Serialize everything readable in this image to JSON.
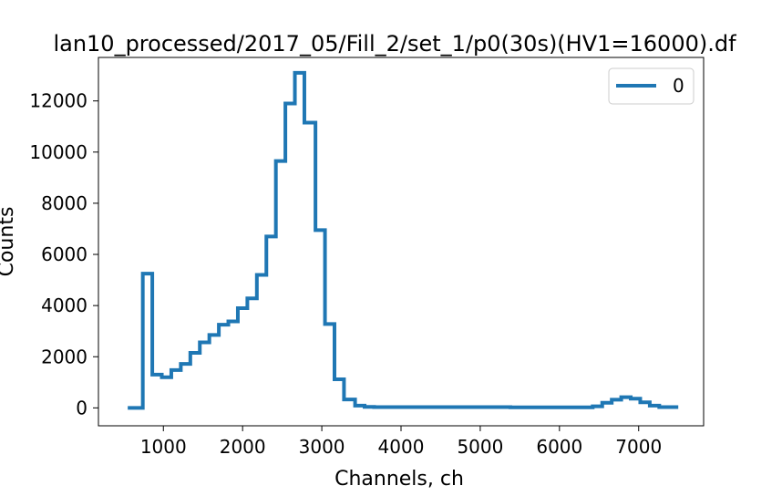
{
  "chart_data": {
    "type": "line",
    "title": "lan10_processed/2017_05/Fill_2/set_1/p0(30s)(HV1=16000).df",
    "xlabel": "Channels, ch",
    "ylabel": "Counts",
    "xlim": [
      180,
      7820
    ],
    "ylim": [
      -700,
      13700
    ],
    "x_ticks": [
      1000,
      2000,
      3000,
      4000,
      5000,
      6000,
      7000
    ],
    "y_ticks": [
      0,
      2000,
      4000,
      6000,
      8000,
      10000,
      12000
    ],
    "grid": false,
    "legend_position": "top-right",
    "series": [
      {
        "name": "0",
        "color": "#1f77b4",
        "step": "post",
        "x": [
          550,
          640,
          740,
          860,
          980,
          1100,
          1220,
          1340,
          1460,
          1580,
          1700,
          1820,
          1940,
          2060,
          2180,
          2300,
          2420,
          2540,
          2660,
          2780,
          2920,
          3040,
          3160,
          3280,
          3420,
          3540,
          3660,
          3780,
          5380,
          6420,
          6540,
          6660,
          6780,
          6900,
          7020,
          7140,
          7260,
          7500
        ],
        "y": [
          0,
          0,
          5250,
          1300,
          1200,
          1480,
          1720,
          2150,
          2560,
          2850,
          3250,
          3380,
          3900,
          4280,
          5200,
          6700,
          9650,
          11900,
          13100,
          11150,
          6950,
          3280,
          1120,
          330,
          90,
          40,
          30,
          30,
          20,
          60,
          200,
          320,
          420,
          360,
          220,
          90,
          30,
          30
        ]
      }
    ]
  }
}
